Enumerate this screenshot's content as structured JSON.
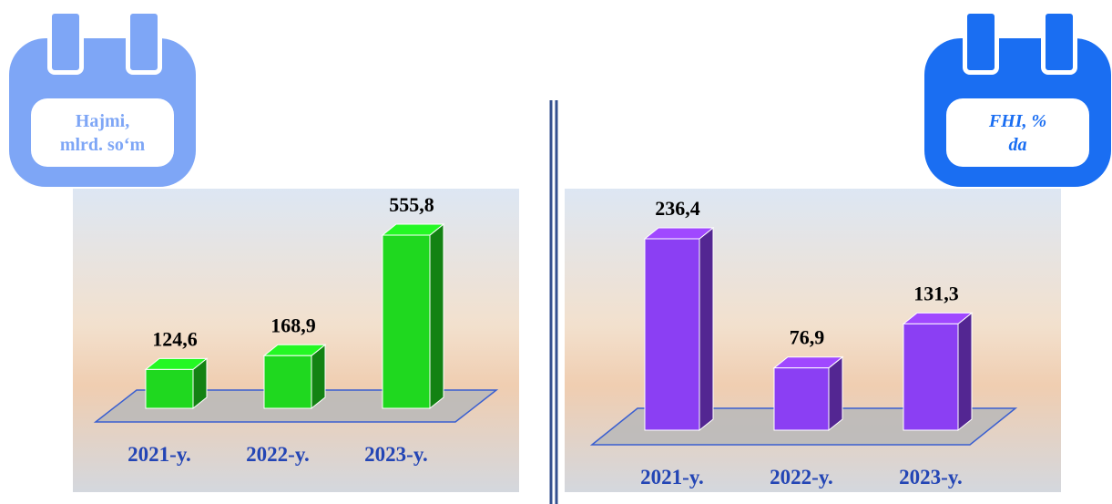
{
  "chart_data": [
    {
      "type": "bar",
      "title": "Hajmi, mlrd. so‘m",
      "categories": [
        "2021-y.",
        "2022-y.",
        "2023-y."
      ],
      "values": [
        124.6,
        168.9,
        555.8
      ],
      "value_labels": [
        "124,6",
        "168,9",
        "555,8"
      ],
      "color": "#1fd81f"
    },
    {
      "type": "bar",
      "title": "FHI, % da",
      "categories": [
        "2021-y.",
        "2022-y.",
        "2023-y."
      ],
      "values": [
        236.4,
        76.9,
        131.3
      ],
      "value_labels": [
        "236,4",
        "76,9",
        "131,3"
      ],
      "color": "#8b3ff3"
    }
  ]
}
